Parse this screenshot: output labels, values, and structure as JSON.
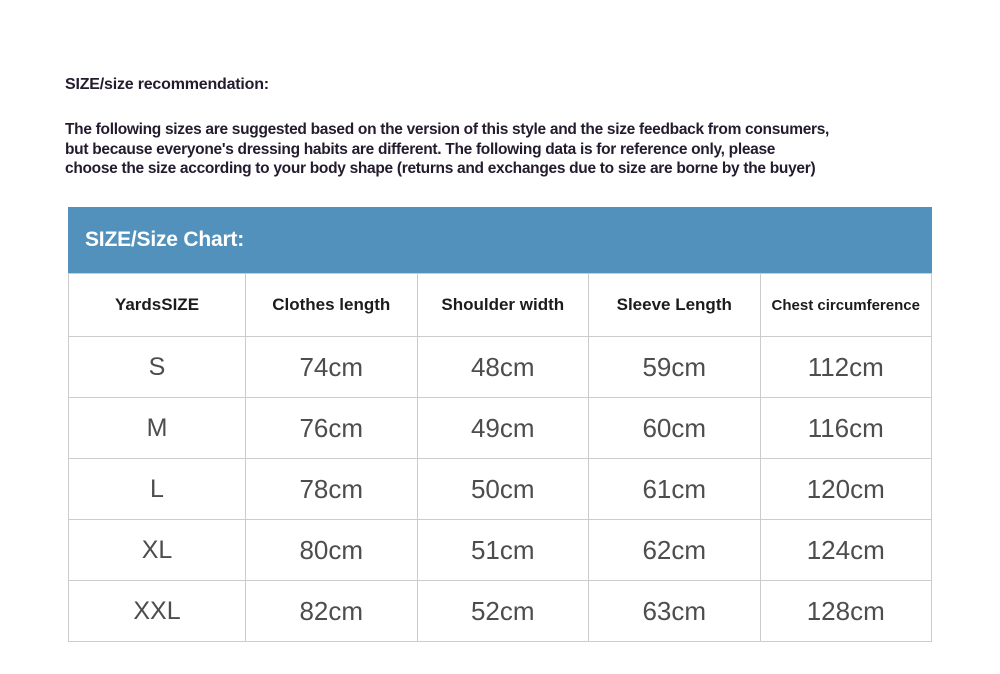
{
  "recommendation": {
    "heading": "SIZE/size recommendation:",
    "lines": [
      "The following sizes are suggested based on the version of this style and the size feedback from consumers,",
      "but because everyone's dressing habits are different. The following data is for reference only, please",
      "choose the size according to your body shape (returns and exchanges due to size are borne by the buyer)"
    ]
  },
  "size_chart": {
    "title": "SIZE/Size Chart:",
    "columns": [
      "YardsSIZE",
      "Clothes length",
      "Shoulder width",
      "Sleeve Length",
      "Chest circumference"
    ],
    "rows": [
      {
        "size": "S",
        "values": [
          "74cm",
          "48cm",
          "59cm",
          "112cm"
        ]
      },
      {
        "size": "M",
        "values": [
          "76cm",
          "49cm",
          "60cm",
          "116cm"
        ]
      },
      {
        "size": "L",
        "values": [
          "78cm",
          "50cm",
          "61cm",
          "120cm"
        ]
      },
      {
        "size": "XL",
        "values": [
          "80cm",
          "51cm",
          "62cm",
          "124cm"
        ]
      },
      {
        "size": "XXL",
        "values": [
          "82cm",
          "52cm",
          "63cm",
          "128cm"
        ]
      }
    ]
  },
  "colors": {
    "banner_bg": "#5291bc",
    "banner_text": "#ffffff",
    "heading_text": "#241b2e",
    "table_border": "#cccccc",
    "header_text": "#1c1c1c",
    "data_text": "#4d4d4d"
  }
}
